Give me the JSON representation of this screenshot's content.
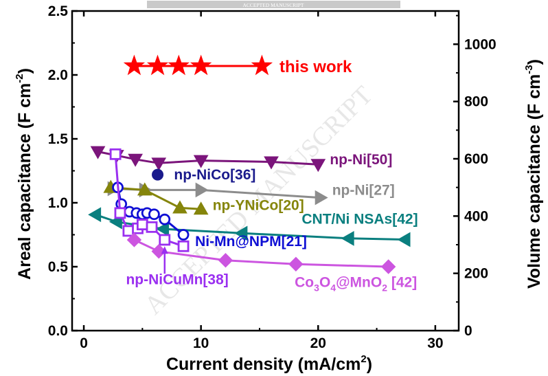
{
  "banner": {
    "text": "ACCEPTED MANUSCRIPT"
  },
  "watermark": {
    "text": "ACCEPTED MANUSCRIPT"
  },
  "chart_data": {
    "type": "scatter",
    "title": "",
    "xlabel": "Current density (mA/cm",
    "xlabel_sup": "2",
    "xlabel_tail": ")",
    "ylabel_left": "Areal capacitance (F cm",
    "ylabel_left_sup": "-2",
    "ylabel_left_tail": ")",
    "ylabel_right": "Volume capacitance (F cm",
    "ylabel_right_sup": "-3",
    "ylabel_right_tail": ")",
    "xlim": [
      -1,
      32
    ],
    "ylim_left": [
      0,
      2.5
    ],
    "ylim_right": [
      0,
      1116
    ],
    "x_ticks": [
      "0",
      "10",
      "20",
      "30"
    ],
    "y_left_ticks": [
      "0.0",
      "0.5",
      "1.0",
      "1.5",
      "2.0",
      "2.5"
    ],
    "y_right_ticks": [
      "0",
      "200",
      "400",
      "600",
      "800",
      "1000"
    ],
    "grid": false,
    "series": [
      {
        "name": "this work",
        "axis": "left",
        "marker": "star",
        "filled": true,
        "color": "#ff0000",
        "x": [
          4.3,
          6.3,
          8.1,
          10.0,
          15.2
        ],
        "y": [
          2.07,
          2.07,
          2.07,
          2.07,
          2.07
        ]
      },
      {
        "name": "np-Ni[50]",
        "axis": "left",
        "marker": "triangle-down",
        "filled": true,
        "color": "#7b157b",
        "x": [
          1.2,
          2.8,
          4.4,
          6.4,
          10.0,
          16.0,
          20.0
        ],
        "y": [
          1.4,
          1.37,
          1.34,
          1.31,
          1.33,
          1.32,
          1.3
        ]
      },
      {
        "name": "np-NiCo[36]",
        "axis": "left",
        "marker": "circle",
        "filled": true,
        "color": "#1a1a8c",
        "x": [
          6.3
        ],
        "y": [
          1.22
        ]
      },
      {
        "name": "np-Ni[27]",
        "axis": "left",
        "marker": "triangle-right",
        "filled": true,
        "color": "#8c8c8c",
        "x": [
          2.5,
          5.2,
          10.0,
          20.2
        ],
        "y": [
          1.11,
          1.1,
          1.1,
          1.04
        ]
      },
      {
        "name": "np-YNiCo[20]",
        "axis": "left",
        "marker": "triangle-up",
        "filled": true,
        "color": "#85850b",
        "x": [
          2.3,
          5.2,
          8.2,
          10.0
        ],
        "y": [
          1.12,
          1.1,
          0.96,
          0.95
        ]
      },
      {
        "name": "CNT/Ni NSAs[42]",
        "axis": "right",
        "marker": "triangle-left",
        "filled": true,
        "color": "#0a7f7f",
        "x": [
          1.0,
          2.8,
          6.8,
          13.5,
          22.6,
          27.4
        ],
        "y": [
          405,
          380,
          355,
          340,
          322,
          318
        ]
      },
      {
        "name": "Ni-Mn@NPM[21]",
        "axis": "left",
        "marker": "circle",
        "filled": false,
        "color": "#0f0fd4",
        "x": [
          2.9,
          3.2,
          3.9,
          4.5,
          5.0,
          5.4,
          6.0,
          6.9,
          8.5
        ],
        "y": [
          1.12,
          0.99,
          0.93,
          0.92,
          0.91,
          0.92,
          0.91,
          0.87,
          0.75
        ]
      },
      {
        "name": "np-NiCuMn[38]",
        "axis": "left",
        "marker": "square",
        "filled": false,
        "color": "#9a2ff0",
        "x": [
          2.7,
          3.1,
          3.8,
          4.6,
          5.0,
          5.8,
          6.9,
          8.5
        ],
        "y": [
          1.38,
          0.92,
          0.78,
          0.8,
          0.83,
          0.81,
          0.71,
          0.66
        ]
      },
      {
        "name": "Co3O4@MnO2[42]",
        "axis": "left",
        "marker": "diamond",
        "filled": true,
        "color": "#cc55e0",
        "x": [
          4.3,
          6.4,
          12.1,
          18.1,
          26.0
        ],
        "y": [
          0.71,
          0.62,
          0.55,
          0.52,
          0.5
        ]
      }
    ],
    "labels": [
      {
        "text": "this work",
        "color": "#ff0000",
        "size": 24,
        "x": 16.7,
        "y": 2.07,
        "dy": 9
      },
      {
        "text": "np-Ni[50]",
        "color": "#7b157b",
        "size": 21,
        "x": 21.0,
        "y": 1.34,
        "dy": 7
      },
      {
        "text": "np-NiCo[36]",
        "color": "#1a1a8c",
        "size": 21,
        "x": 7.7,
        "y": 1.22,
        "dy": 7
      },
      {
        "text": "np-Ni[27]",
        "color": "#8c8c8c",
        "size": 21,
        "x": 21.2,
        "y": 1.1,
        "dy": 7
      },
      {
        "text": "np-YNiCo[20]",
        "color": "#85850b",
        "size": 21,
        "x": 11.0,
        "y": 0.98,
        "dy": 7
      },
      {
        "text": "CNT/Ni NSAs[42]",
        "color": "#0a7f7f",
        "size": 21,
        "x": 18.6,
        "y": 0.875,
        "dy": 7
      },
      {
        "text": "Ni-Mn@NPM[21]",
        "color": "#0f0fd4",
        "size": 21,
        "x": 9.5,
        "y": 0.7,
        "dy": 7
      },
      {
        "text": "np-NiCuMn[38]",
        "color": "#9a2ff0",
        "size": 21,
        "x": 3.6,
        "y": 0.4,
        "dy": 7
      },
      {
        "text": "Co3O4@MnO2 [42]",
        "color": "#cc55e0",
        "size": 21,
        "x": 18.0,
        "y": 0.38,
        "dy": 7
      }
    ]
  }
}
